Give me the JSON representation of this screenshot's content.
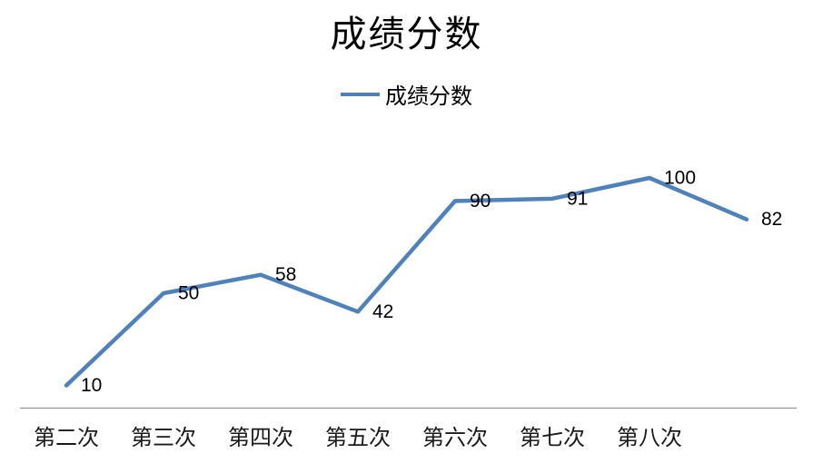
{
  "chart_data": {
    "type": "line",
    "title": "成绩分数",
    "categories": [
      "第二次",
      "第三次",
      "第四次",
      "第五次",
      "第六次",
      "第七次",
      "第八次",
      ""
    ],
    "series": [
      {
        "name": "成绩分数",
        "values": [
          10,
          50,
          58,
          42,
          90,
          91,
          100,
          82
        ]
      }
    ],
    "data_labels": [
      10,
      50,
      58,
      42,
      90,
      91,
      100,
      82
    ],
    "legend_position": "top",
    "grid": false,
    "y_axis_visible": false,
    "ylim": [
      0,
      120
    ],
    "colors": {
      "series_line": "#4F81BD",
      "axis_line": "#919191",
      "label_text": "#000000",
      "category_text": "#1a1a1a",
      "background": "#ffffff"
    }
  }
}
